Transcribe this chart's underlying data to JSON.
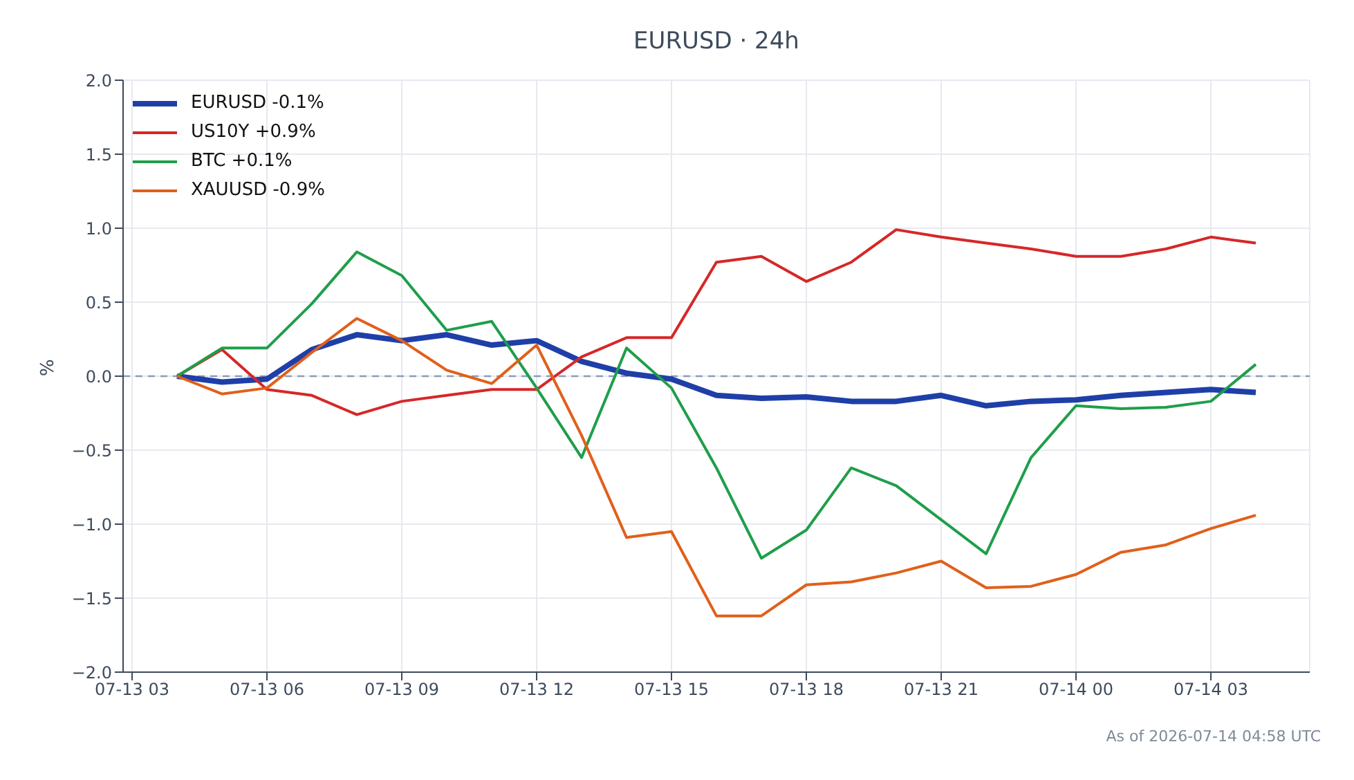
{
  "chart_data": {
    "type": "line",
    "title": "EURUSD · 24h",
    "ylabel": "%",
    "annotations": [
      "As of 2026-07-14 04:58 UTC"
    ],
    "x": [
      "2026-07-13T04:00",
      "2026-07-13T05:00",
      "2026-07-13T06:00",
      "2026-07-13T07:00",
      "2026-07-13T08:00",
      "2026-07-13T09:00",
      "2026-07-13T10:00",
      "2026-07-13T11:00",
      "2026-07-13T12:00",
      "2026-07-13T13:00",
      "2026-07-13T14:00",
      "2026-07-13T15:00",
      "2026-07-13T16:00",
      "2026-07-13T17:00",
      "2026-07-13T18:00",
      "2026-07-13T19:00",
      "2026-07-13T20:00",
      "2026-07-13T21:00",
      "2026-07-13T22:00",
      "2026-07-13T23:00",
      "2026-07-14T00:00",
      "2026-07-14T01:00",
      "2026-07-14T02:00",
      "2026-07-14T03:00",
      "2026-07-14T04:00"
    ],
    "series": [
      {
        "name": "EURUSD -0.1%",
        "color": "#1f3fa8",
        "values": [
          0,
          -0.04,
          -0.02,
          0.18,
          0.28,
          0.24,
          0.28,
          0.21,
          0.24,
          0.1,
          0.02,
          -0.02,
          -0.13,
          -0.15,
          -0.14,
          -0.17,
          -0.17,
          -0.13,
          -0.2,
          -0.17,
          -0.16,
          -0.13,
          -0.11,
          -0.09,
          -0.11
        ]
      },
      {
        "name": "US10Y +0.9%",
        "color": "#d62728",
        "values": [
          0,
          0.18,
          -0.09,
          -0.13,
          -0.26,
          -0.17,
          -0.13,
          -0.09,
          -0.09,
          0.13,
          0.26,
          0.26,
          0.77,
          0.81,
          0.64,
          0.77,
          0.99,
          0.94,
          0.9,
          0.86,
          0.81,
          0.81,
          0.86,
          0.94,
          0.9
        ]
      },
      {
        "name": "BTC +0.1%",
        "color": "#1f9e4a",
        "values": [
          0,
          0.19,
          0.19,
          0.49,
          0.84,
          0.68,
          0.31,
          0.37,
          -0.08,
          -0.55,
          0.19,
          -0.08,
          -0.62,
          -1.23,
          -1.04,
          -0.62,
          -0.74,
          -0.97,
          -1.2,
          -0.55,
          -0.2,
          -0.22,
          -0.21,
          -0.17,
          0.08
        ]
      },
      {
        "name": "XAUUSD -0.9%",
        "color": "#e0601a",
        "values": [
          0,
          -0.12,
          -0.08,
          0.16,
          0.39,
          0.24,
          0.04,
          -0.05,
          0.21,
          -0.4,
          -1.09,
          -1.05,
          -1.62,
          -1.62,
          -1.41,
          -1.39,
          -1.33,
          -1.25,
          -1.43,
          -1.42,
          -1.34,
          -1.19,
          -1.14,
          -1.03,
          -0.94
        ]
      }
    ],
    "xlim": [
      "2026-07-13T02:48",
      "2026-07-14T05:12"
    ],
    "xticks": [
      {
        "value": "2026-07-13T03:00",
        "label": "07-13 03"
      },
      {
        "value": "2026-07-13T06:00",
        "label": "07-13 06"
      },
      {
        "value": "2026-07-13T09:00",
        "label": "07-13 09"
      },
      {
        "value": "2026-07-13T12:00",
        "label": "07-13 12"
      },
      {
        "value": "2026-07-13T15:00",
        "label": "07-13 15"
      },
      {
        "value": "2026-07-13T18:00",
        "label": "07-13 18"
      },
      {
        "value": "2026-07-13T21:00",
        "label": "07-13 21"
      },
      {
        "value": "2026-07-14T00:00",
        "label": "07-14 00"
      },
      {
        "value": "2026-07-14T03:00",
        "label": "07-14 03"
      }
    ],
    "ylim": [
      -2.0,
      2.0
    ],
    "yticks": [
      {
        "value": -2,
        "label": "−2.0"
      },
      {
        "value": -1.5,
        "label": "−1.5"
      },
      {
        "value": -1,
        "label": "−1.0"
      },
      {
        "value": -0.5,
        "label": "−0.5"
      },
      {
        "value": 0,
        "label": "0.0"
      },
      {
        "value": 0.5,
        "label": "0.5"
      },
      {
        "value": 1,
        "label": "1.0"
      },
      {
        "value": 1.5,
        "label": "1.5"
      },
      {
        "value": 2,
        "label": "2.0"
      }
    ],
    "ref_lines": [
      {
        "axis": "y",
        "value": 0,
        "color": "#8a9ab8",
        "line_style": "dashed"
      }
    ],
    "grid": true,
    "legend": "top left",
    "marker": "none",
    "line_style": "solid"
  }
}
